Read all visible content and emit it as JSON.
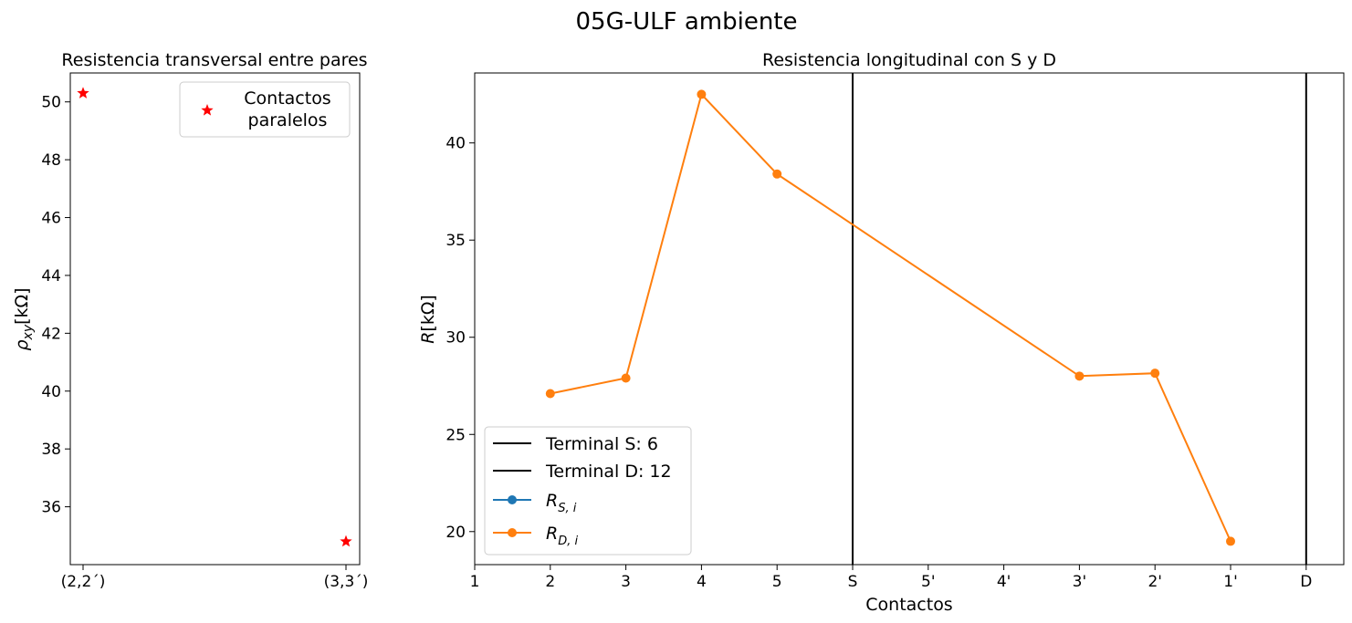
{
  "figure": {
    "title": "05G-ULF ambiente"
  },
  "chart_data": [
    {
      "type": "scatter",
      "title": "Resistencia transversal entre pares",
      "xlabel": "",
      "ylabel": "ρxy[kΩ]",
      "ylabel_base": "ρ",
      "ylabel_sub": "xy",
      "ylabel_rest": "[kΩ]",
      "categories": [
        "(2,2´)",
        "(3,3´)"
      ],
      "series": [
        {
          "name": "Contactos paralelos",
          "name_lines": [
            "Contactos",
            "paralelos"
          ],
          "marker": "star",
          "color": "#ff0000",
          "values": [
            50.3,
            34.8
          ]
        }
      ],
      "ylim": [
        34.0,
        51.0
      ],
      "yticks": [
        36,
        38,
        40,
        42,
        44,
        46,
        48,
        50
      ],
      "grid": false,
      "legend": "top-right"
    },
    {
      "type": "line",
      "title": "Resistencia longitudinal con S y D",
      "xlabel": "Contactos",
      "ylabel": "R[kΩ]",
      "ylabel_base": "R",
      "ylabel_rest": "[kΩ]",
      "categories": [
        "1",
        "2",
        "3",
        "4",
        "5",
        "S",
        "5'",
        "4'",
        "3'",
        "2'",
        "1'",
        "D"
      ],
      "vlines": [
        {
          "name": "Terminal S: 6",
          "at": "S",
          "color": "#000000"
        },
        {
          "name": "Terminal D: 12",
          "at": "D",
          "color": "#000000"
        }
      ],
      "series": [
        {
          "name": "R_S,i",
          "label_base": "R",
          "label_sub": "S, i",
          "color": "#1f77b4",
          "points": []
        },
        {
          "name": "R_D,i",
          "label_base": "R",
          "label_sub": "D, i",
          "color": "#ff7f0e",
          "points": [
            {
              "x": "2",
              "y": 27.1
            },
            {
              "x": "3",
              "y": 27.9
            },
            {
              "x": "4",
              "y": 42.5
            },
            {
              "x": "5",
              "y": 38.4
            },
            {
              "x": "3'",
              "y": 28.0
            },
            {
              "x": "2'",
              "y": 28.15
            },
            {
              "x": "1'",
              "y": 19.5
            }
          ]
        }
      ],
      "ylim": [
        18.3,
        43.6
      ],
      "yticks": [
        20,
        25,
        30,
        35,
        40
      ],
      "grid": false,
      "legend": "lower-left"
    }
  ]
}
